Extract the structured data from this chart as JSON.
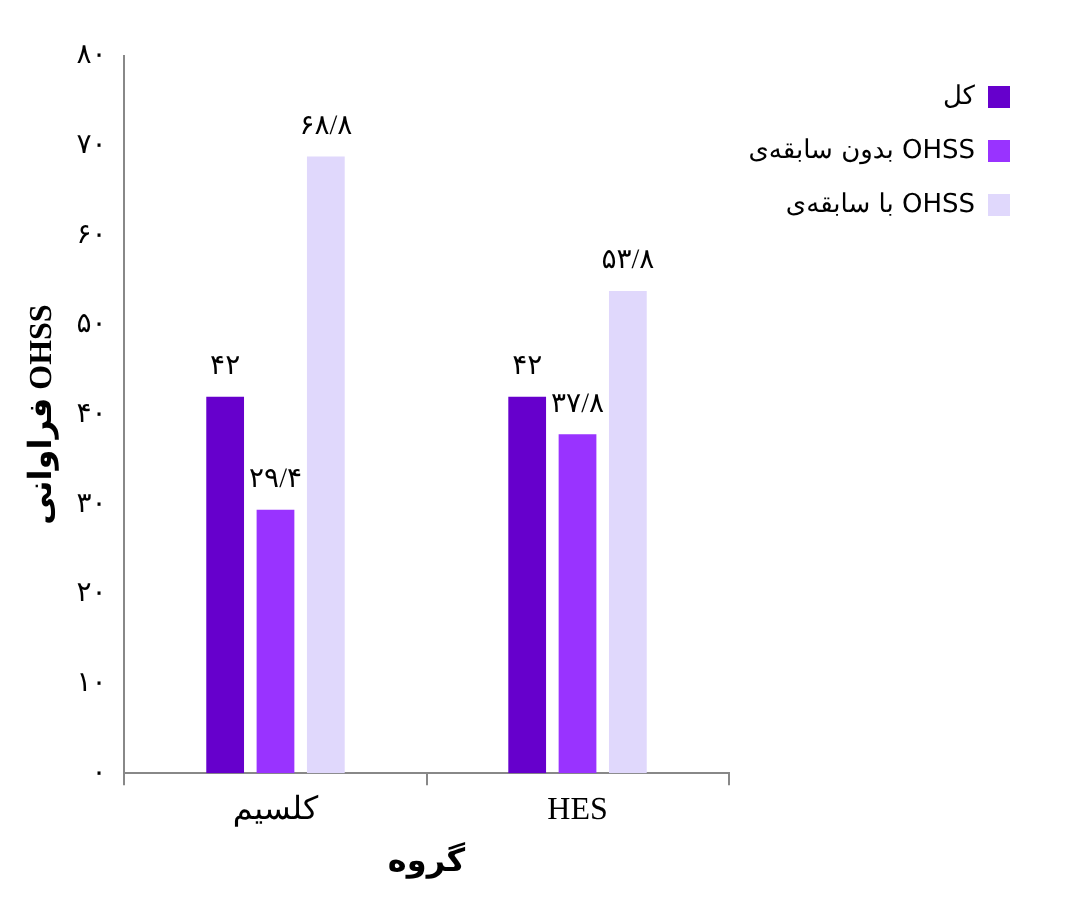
{
  "chart_data": {
    "type": "bar",
    "xlabel": "گروه",
    "ylabel": "فراوانی OHSS",
    "categories": [
      "کلسیم",
      "HES"
    ],
    "series": [
      {
        "name": "کل",
        "color": "#6600cc",
        "values": [
          42,
          42
        ],
        "value_labels": [
          "۴۲",
          "۴۲"
        ]
      },
      {
        "name": "بدون سابقه‌ی OHSS",
        "color": "#9933ff",
        "values": [
          29.4,
          37.8
        ],
        "value_labels": [
          "۲۹/۴",
          "۳۷/۸"
        ]
      },
      {
        "name": "با سابقه‌ی OHSS",
        "color": "#e0d8fc",
        "values": [
          68.8,
          53.8
        ],
        "value_labels": [
          "۶۸/۸",
          "۵۳/۸"
        ]
      }
    ],
    "ylim": [
      0,
      80
    ],
    "yticks": [
      {
        "value": 0,
        "label": "۰"
      },
      {
        "value": 10,
        "label": "۱۰"
      },
      {
        "value": 20,
        "label": "۲۰"
      },
      {
        "value": 30,
        "label": "۳۰"
      },
      {
        "value": 40,
        "label": "۴۰"
      },
      {
        "value": 50,
        "label": "۵۰"
      },
      {
        "value": 60,
        "label": "۶۰"
      },
      {
        "value": 70,
        "label": "۷۰"
      },
      {
        "value": 80,
        "label": "۸۰"
      }
    ],
    "grid": false,
    "legend": "top right"
  }
}
